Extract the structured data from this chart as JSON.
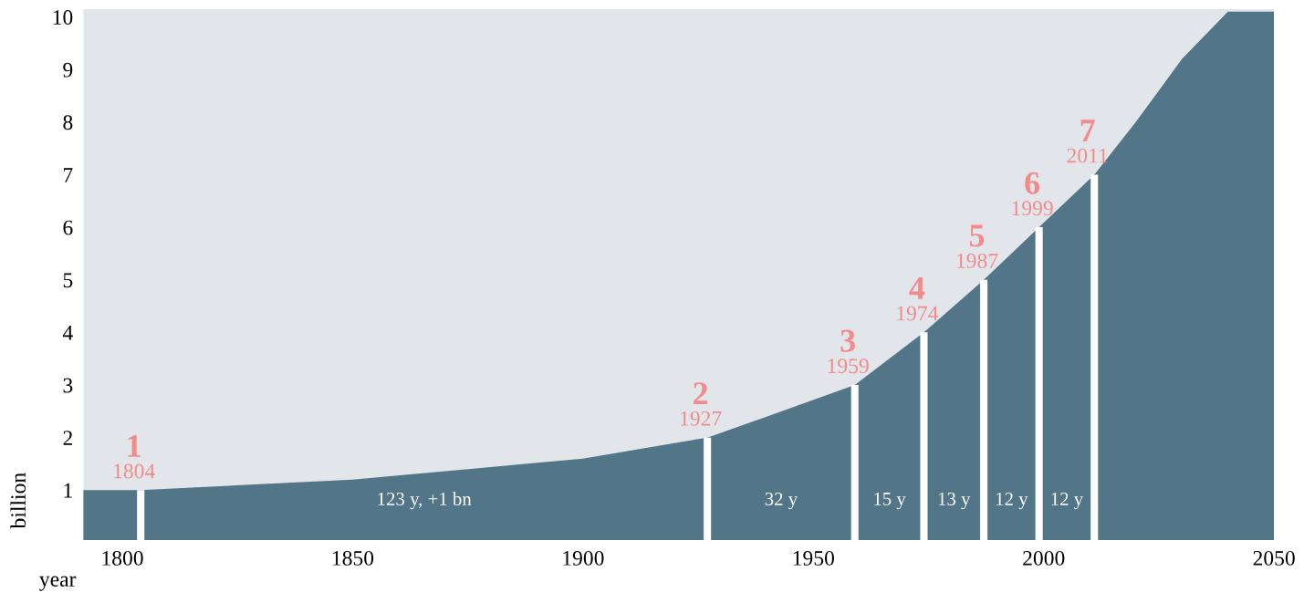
{
  "chart_data": {
    "type": "area",
    "xlabel": "year",
    "ylabel": "billion",
    "series": [
      {
        "color": "#527588",
        "x": [
          1791,
          1804,
          1850,
          1900,
          1927,
          1940,
          1959,
          1974,
          1987,
          1999,
          2011,
          2020,
          2030,
          2040,
          2050
        ],
        "values": [
          1.0,
          1.0,
          1.2,
          1.6,
          2.0,
          2.4,
          3.0,
          4.0,
          5.0,
          6.0,
          7.0,
          8.0,
          9.2,
          10.1,
          10.1
        ]
      },
      {
        "type": "bar",
        "color": "#ffffff",
        "x": [
          1804,
          1927,
          1959,
          1974,
          1987,
          1999,
          2011
        ],
        "values": [
          1,
          2,
          3,
          4,
          5,
          6,
          7
        ],
        "data_labels": true
      }
    ],
    "annotations": [
      {
        "text": "1804",
        "x": 1804,
        "y": 1
      },
      {
        "text": "1927",
        "x": 1927,
        "y": 2
      },
      {
        "text": "1959",
        "x": 1959,
        "y": 3
      },
      {
        "text": "1974",
        "x": 1974,
        "y": 4
      },
      {
        "text": "1987",
        "x": 1987,
        "y": 5
      },
      {
        "text": "1999",
        "x": 1999,
        "y": 6
      },
      {
        "text": "2011",
        "x": 2011,
        "y": 7
      },
      "123 y, +1 bn",
      "32 y",
      "15 y",
      "13 y",
      "12 y",
      "12 y"
    ],
    "xlim": [
      1791,
      2050
    ],
    "xticks": [
      1800,
      1850,
      1900,
      1950,
      2000,
      2050
    ],
    "ylim": [
      0,
      10.15
    ],
    "yticks": [
      1,
      2,
      3,
      4,
      5,
      6,
      7,
      8,
      9,
      10
    ],
    "grid": false,
    "legend": false
  }
}
